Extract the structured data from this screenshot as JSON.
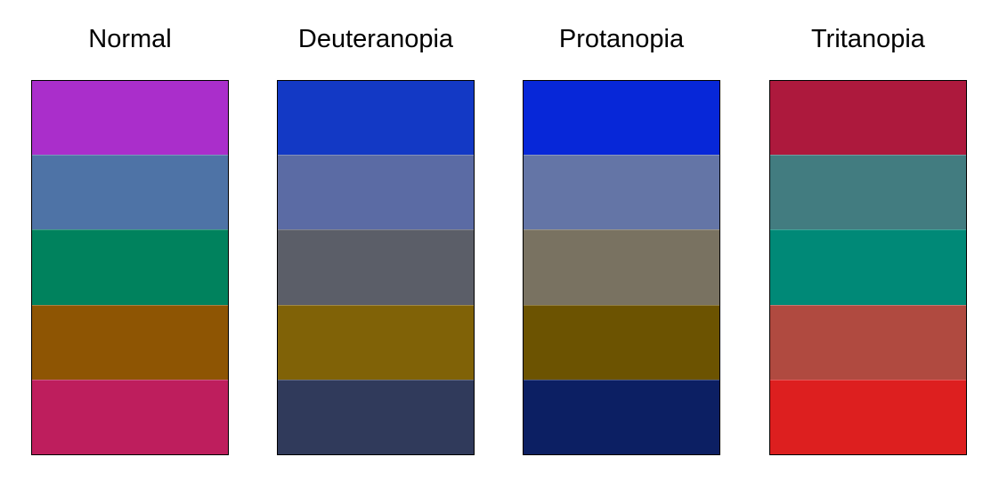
{
  "panels": [
    {
      "title": "Normal",
      "colors": [
        "#AA2ECB",
        "#4E73A6",
        "#00825D",
        "#8E5503",
        "#BE1E5D"
      ]
    },
    {
      "title": "Deuteranopia",
      "colors": [
        "#1339C5",
        "#5B6BA4",
        "#5B5E68",
        "#806207",
        "#303A5B"
      ]
    },
    {
      "title": "Protanopia",
      "colors": [
        "#0727D8",
        "#6475A6",
        "#797261",
        "#6C5301",
        "#0C1F63"
      ]
    },
    {
      "title": "Tritanopia",
      "colors": [
        "#AD193D",
        "#427C80",
        "#008977",
        "#B04A40",
        "#DD1F1F"
      ]
    }
  ]
}
